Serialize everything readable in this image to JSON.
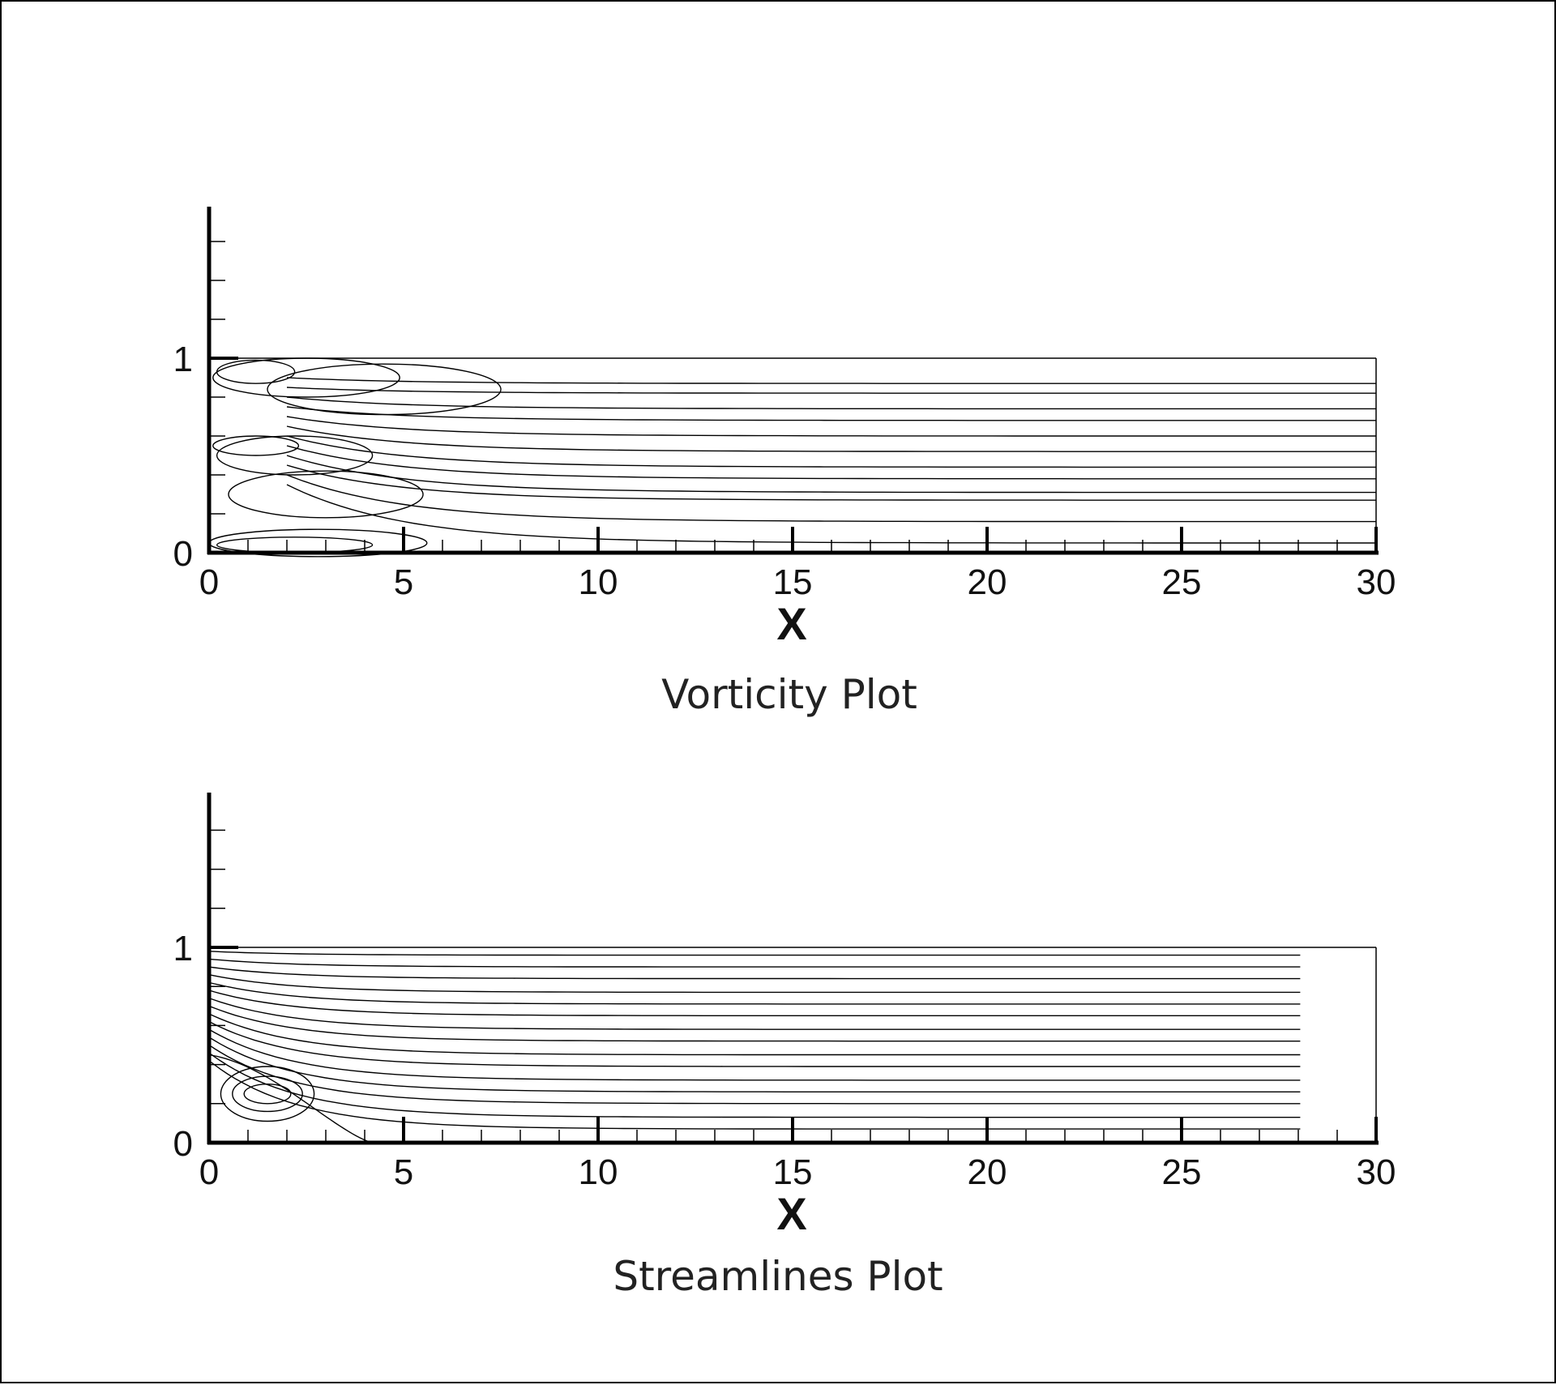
{
  "chart_data": [
    {
      "type": "contour",
      "caption": "Vorticity Plot",
      "xlabel": "X",
      "ylabel": "",
      "xlim": [
        0,
        30
      ],
      "ylim": [
        0,
        1
      ],
      "x_ticks": [
        0,
        5,
        10,
        15,
        20,
        25,
        30
      ],
      "y_ticks": [
        0,
        1
      ],
      "contour_levels_far_field_y": [
        0.05,
        0.16,
        0.27,
        0.31,
        0.38,
        0.44,
        0.52,
        0.6,
        0.68,
        0.74,
        0.82,
        0.87
      ]
    },
    {
      "type": "streamlines",
      "caption": "Streamlines Plot",
      "xlabel": "X",
      "ylabel": "",
      "xlim": [
        0,
        30
      ],
      "ylim": [
        0,
        1
      ],
      "x_ticks": [
        0,
        5,
        10,
        15,
        20,
        25,
        30
      ],
      "y_ticks": [
        0,
        1
      ],
      "streamline_far_field_y": [
        0.07,
        0.13,
        0.2,
        0.26,
        0.32,
        0.39,
        0.45,
        0.52,
        0.58,
        0.65,
        0.71,
        0.77,
        0.84,
        0.9,
        0.96
      ],
      "recirculation_bubble": {
        "x_center": 1.5,
        "y_center": 0.25,
        "reattachment_x": 4.2
      }
    }
  ]
}
